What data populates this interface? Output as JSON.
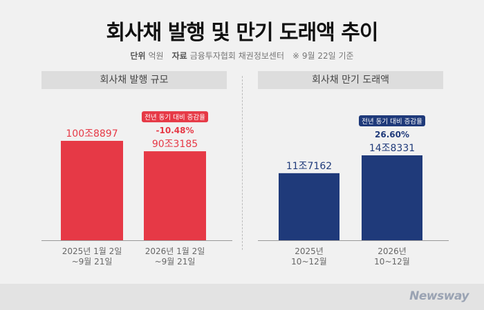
{
  "header": {
    "title": "회사채 발행 및 만기 도래액 추이",
    "unit_label": "단위",
    "unit_value": "억원",
    "source_label": "자료",
    "source_value": "금융투자협회 채권정보센터",
    "note": "※ 9월 22일 기준"
  },
  "chart_data": [
    {
      "type": "bar",
      "title": "회사채 발행 규모",
      "categories": [
        "2025년 1월 2일\n~9월 21일",
        "2026년 1월 2일\n~9월 21일"
      ],
      "values": [
        1008897,
        903185
      ],
      "value_labels": [
        "100조8897",
        "90조3185"
      ],
      "change_badge": "전년 동기 대비 증감율",
      "change_value": "-10.48%",
      "color": "#e63946",
      "accent": "#e63946"
    },
    {
      "type": "bar",
      "title": "회사채 만기 도래액",
      "categories": [
        "2025년\n10~12월",
        "2026년\n10~12월"
      ],
      "values": [
        117162,
        148331
      ],
      "value_labels": [
        "11조7162",
        "14조8331"
      ],
      "change_badge": "전년 동기 대비 증감율",
      "change_value": "26.60%",
      "color": "#1f3a7a",
      "accent": "#1f3a7a"
    }
  ],
  "footer": {
    "logo": "Newsway"
  }
}
